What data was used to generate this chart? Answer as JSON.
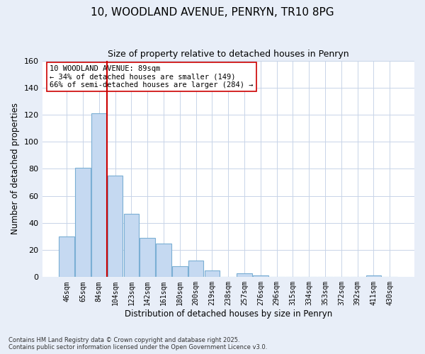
{
  "title": "10, WOODLAND AVENUE, PENRYN, TR10 8PG",
  "subtitle": "Size of property relative to detached houses in Penryn",
  "xlabel": "Distribution of detached houses by size in Penryn",
  "ylabel": "Number of detached properties",
  "bar_labels": [
    "46sqm",
    "65sqm",
    "84sqm",
    "104sqm",
    "123sqm",
    "142sqm",
    "161sqm",
    "180sqm",
    "200sqm",
    "219sqm",
    "238sqm",
    "257sqm",
    "276sqm",
    "296sqm",
    "315sqm",
    "334sqm",
    "353sqm",
    "372sqm",
    "392sqm",
    "411sqm",
    "430sqm"
  ],
  "bar_values": [
    30,
    81,
    121,
    75,
    47,
    29,
    25,
    8,
    12,
    5,
    0,
    3,
    1,
    0,
    0,
    0,
    0,
    0,
    0,
    1,
    0
  ],
  "bar_color": "#c5d9f1",
  "bar_edge_color": "#7bafd4",
  "ylim": [
    0,
    160
  ],
  "yticks": [
    0,
    20,
    40,
    60,
    80,
    100,
    120,
    140,
    160
  ],
  "property_line_x": 2.5,
  "property_line_color": "#cc0000",
  "annotation_line1": "10 WOODLAND AVENUE: 89sqm",
  "annotation_line2": "← 34% of detached houses are smaller (149)",
  "annotation_line3": "66% of semi-detached houses are larger (284) →",
  "annotation_box_color": "#ffffff",
  "annotation_box_edgecolor": "#cc0000",
  "footnote1": "Contains HM Land Registry data © Crown copyright and database right 2025.",
  "footnote2": "Contains public sector information licensed under the Open Government Licence v3.0.",
  "background_color": "#e8eef8",
  "plot_background_color": "#ffffff",
  "grid_color": "#c8d4e8"
}
